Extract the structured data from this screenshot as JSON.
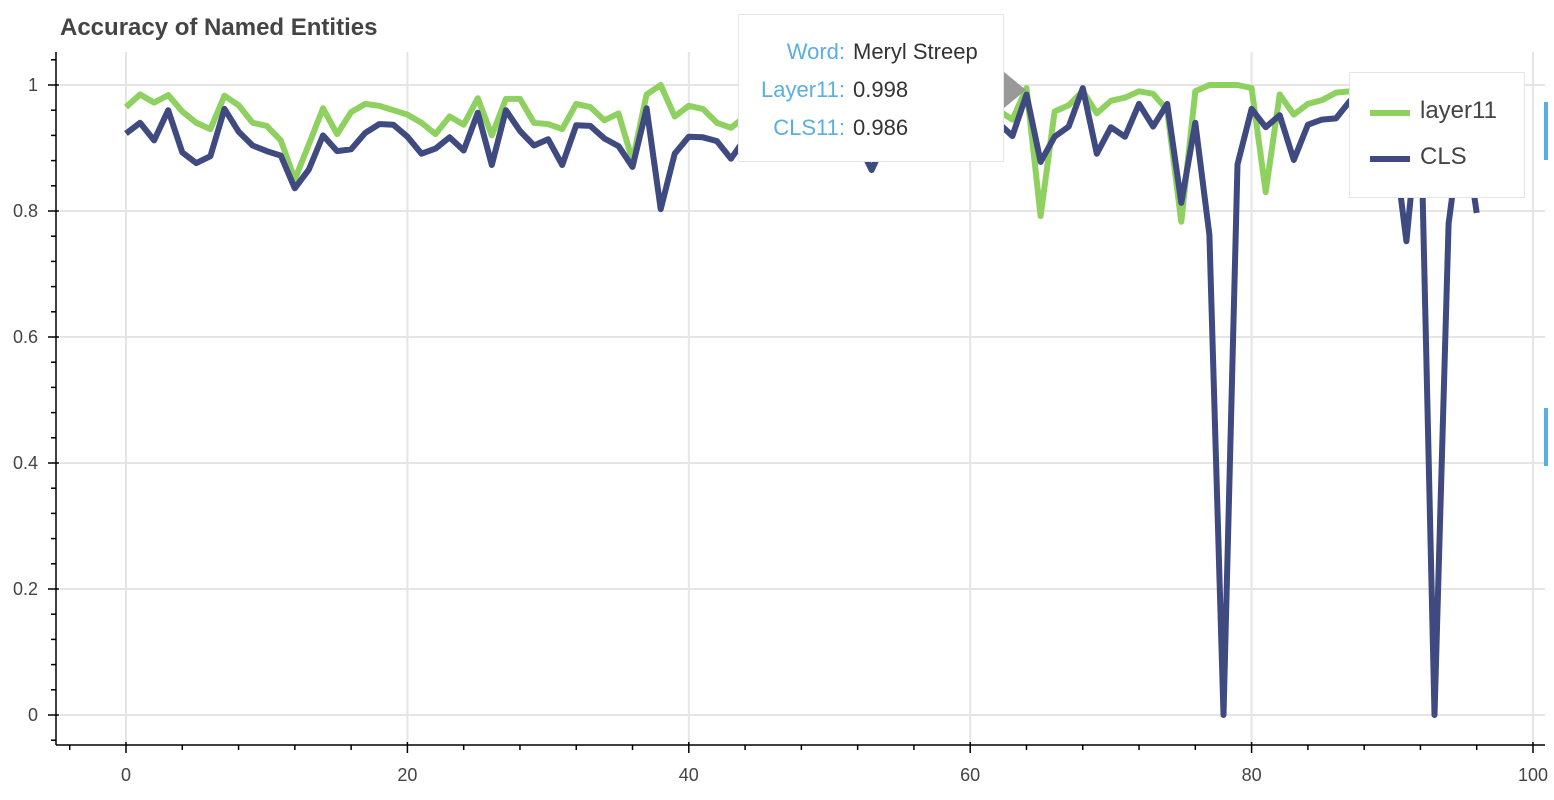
{
  "chart_data": {
    "type": "line",
    "title": "Accuracy of Named Entities",
    "xlabel": "",
    "ylabel": "",
    "xlim": [
      -5,
      100
    ],
    "ylim": [
      -0.05,
      1.05
    ],
    "grid": true,
    "x_ticks": [
      0,
      20,
      40,
      60,
      80,
      100
    ],
    "y_ticks": [
      0,
      0.2,
      0.4,
      0.6,
      0.8,
      1
    ],
    "x_tick_labels": [
      "0",
      "20",
      "40",
      "60",
      "80",
      "100"
    ],
    "y_tick_labels": [
      "0",
      "0.2",
      "0.4",
      "0.6",
      "0.8",
      "1"
    ],
    "legend_position": "top-right",
    "series": [
      {
        "name": "layer11",
        "color": "#8fd160",
        "x": [
          0,
          1,
          2,
          3,
          4,
          5,
          6,
          7,
          8,
          9,
          10,
          11,
          12,
          13,
          14,
          15,
          16,
          17,
          18,
          19,
          20,
          21,
          22,
          23,
          24,
          25,
          26,
          27,
          28,
          29,
          30,
          31,
          32,
          33,
          34,
          35,
          36,
          37,
          38,
          39,
          40,
          41,
          42,
          43,
          44,
          45,
          46,
          47,
          48,
          49,
          50,
          51,
          52,
          53,
          54,
          55,
          56,
          57,
          58,
          59,
          60,
          61,
          62,
          63,
          64,
          65,
          66,
          67,
          68,
          69,
          70,
          71,
          72,
          73,
          74,
          75,
          76,
          77,
          78,
          79,
          80,
          81,
          82,
          83,
          84,
          85,
          86,
          87,
          88,
          89,
          90,
          91,
          92,
          93,
          94,
          95,
          96
        ],
        "values": [
          0.965,
          0.985,
          0.972,
          0.984,
          0.958,
          0.94,
          0.93,
          0.983,
          0.968,
          0.94,
          0.935,
          0.912,
          0.85,
          0.906,
          0.963,
          0.922,
          0.957,
          0.97,
          0.967,
          0.96,
          0.953,
          0.94,
          0.922,
          0.95,
          0.937,
          0.979,
          0.92,
          0.978,
          0.978,
          0.94,
          0.938,
          0.93,
          0.97,
          0.965,
          0.944,
          0.955,
          0.88,
          0.985,
          1.0,
          0.95,
          0.967,
          0.962,
          0.94,
          0.932,
          0.95,
          0.96,
          0.95,
          0.955,
          0.945,
          0.95,
          0.96,
          0.965,
          0.955,
          0.95,
          0.96,
          0.965,
          0.97,
          0.965,
          0.96,
          0.965,
          0.97,
          0.975,
          0.96,
          0.945,
          0.995,
          0.792,
          0.958,
          0.968,
          0.99,
          0.955,
          0.975,
          0.98,
          0.99,
          0.986,
          0.96,
          0.783,
          0.99,
          1.0,
          1.0,
          1.0,
          0.995,
          0.83,
          0.985,
          0.953,
          0.97,
          0.976,
          0.988,
          0.99,
          0.985,
          0.975,
          0.97,
          0.94,
          0.96,
          0.94,
          0.93,
          0.95,
          0.98
        ]
      },
      {
        "name": "CLS",
        "color": "#3e4a80",
        "x": [
          0,
          1,
          2,
          3,
          4,
          5,
          6,
          7,
          8,
          9,
          10,
          11,
          12,
          13,
          14,
          15,
          16,
          17,
          18,
          19,
          20,
          21,
          22,
          23,
          24,
          25,
          26,
          27,
          28,
          29,
          30,
          31,
          32,
          33,
          34,
          35,
          36,
          37,
          38,
          39,
          40,
          41,
          42,
          43,
          44,
          45,
          46,
          47,
          48,
          49,
          50,
          51,
          52,
          53,
          54,
          55,
          56,
          57,
          58,
          59,
          60,
          61,
          62,
          63,
          64,
          65,
          66,
          67,
          68,
          69,
          70,
          71,
          72,
          73,
          74,
          75,
          76,
          77,
          78,
          79,
          80,
          81,
          82,
          83,
          84,
          85,
          86,
          87,
          88,
          89,
          90,
          91,
          92,
          93,
          94,
          95,
          96
        ],
        "values": [
          0.923,
          0.94,
          0.912,
          0.96,
          0.893,
          0.876,
          0.887,
          0.962,
          0.926,
          0.904,
          0.895,
          0.888,
          0.836,
          0.866,
          0.92,
          0.895,
          0.898,
          0.924,
          0.938,
          0.937,
          0.918,
          0.891,
          0.899,
          0.917,
          0.896,
          0.956,
          0.873,
          0.96,
          0.927,
          0.904,
          0.914,
          0.873,
          0.936,
          0.935,
          0.915,
          0.903,
          0.87,
          0.963,
          0.803,
          0.891,
          0.918,
          0.917,
          0.911,
          0.883,
          0.915,
          0.912,
          0.9,
          0.905,
          0.885,
          0.905,
          0.915,
          0.92,
          0.91,
          0.865,
          0.915,
          0.92,
          0.93,
          0.925,
          0.92,
          0.925,
          0.93,
          0.935,
          0.94,
          0.919,
          0.985,
          0.878,
          0.918,
          0.934,
          0.995,
          0.891,
          0.933,
          0.918,
          0.97,
          0.934,
          0.97,
          0.813,
          0.94,
          0.762,
          0.0,
          0.874,
          0.962,
          0.933,
          0.952,
          0.881,
          0.937,
          0.945,
          0.947,
          0.975,
          0.96,
          0.945,
          0.93,
          0.752,
          0.98,
          0.0,
          0.78,
          0.95,
          0.797
        ]
      }
    ],
    "tooltip": {
      "rows": [
        {
          "key": "Word:",
          "value": "Meryl Streep"
        },
        {
          "key": "Layer11:",
          "value": "0.998"
        },
        {
          "key": "CLS11:",
          "value": "0.986"
        }
      ]
    }
  }
}
